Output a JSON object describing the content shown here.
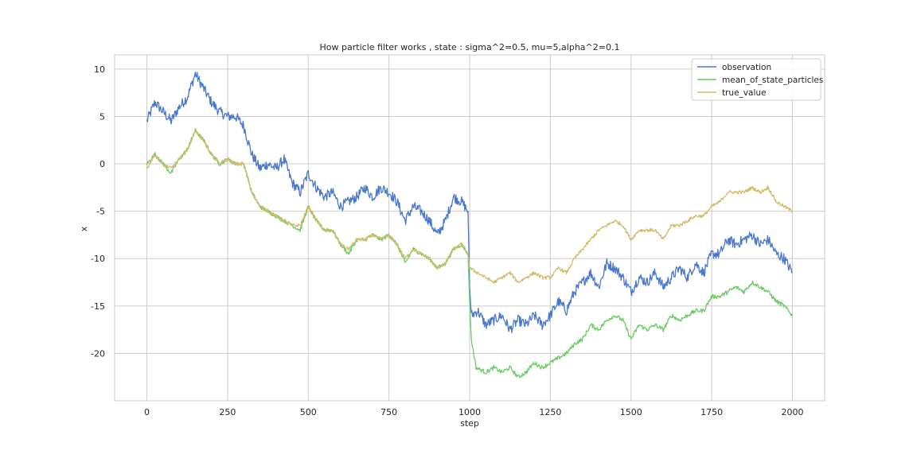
{
  "chart_data": {
    "type": "line",
    "title": "How particle filter works , state : sigma^2=0.5, mu=5,alpha^2=0.1",
    "xlabel": "step",
    "ylabel": "x",
    "xlim": [
      -100,
      2100
    ],
    "ylim": [
      -25,
      11.5
    ],
    "xticks": [
      0,
      250,
      500,
      750,
      1000,
      1250,
      1500,
      1750,
      2000
    ],
    "yticks": [
      10,
      5,
      0,
      -5,
      -10,
      -15,
      -20
    ],
    "grid": true,
    "legend_position": "top-right",
    "series": [
      {
        "name": "observation",
        "color": "#4878d0",
        "points": [
          [
            0,
            4.5
          ],
          [
            25,
            6.5
          ],
          [
            50,
            5.5
          ],
          [
            75,
            4.5
          ],
          [
            100,
            6.0
          ],
          [
            125,
            7.0
          ],
          [
            150,
            9.5
          ],
          [
            175,
            8.0
          ],
          [
            200,
            6.5
          ],
          [
            225,
            5.5
          ],
          [
            250,
            5.0
          ],
          [
            275,
            5.0
          ],
          [
            300,
            4.0
          ],
          [
            325,
            1.0
          ],
          [
            350,
            -0.5
          ],
          [
            375,
            0.0
          ],
          [
            400,
            -0.5
          ],
          [
            425,
            0.5
          ],
          [
            450,
            -2.0
          ],
          [
            475,
            -3.0
          ],
          [
            500,
            -1.0
          ],
          [
            525,
            -2.5
          ],
          [
            550,
            -3.5
          ],
          [
            575,
            -3.0
          ],
          [
            600,
            -4.5
          ],
          [
            625,
            -4.0
          ],
          [
            650,
            -3.5
          ],
          [
            675,
            -2.5
          ],
          [
            700,
            -3.5
          ],
          [
            725,
            -2.5
          ],
          [
            750,
            -3.0
          ],
          [
            775,
            -4.0
          ],
          [
            800,
            -6.0
          ],
          [
            825,
            -4.5
          ],
          [
            850,
            -5.0
          ],
          [
            875,
            -6.0
          ],
          [
            900,
            -7.5
          ],
          [
            925,
            -6.0
          ],
          [
            950,
            -3.5
          ],
          [
            975,
            -4.0
          ],
          [
            995,
            -5.0
          ],
          [
            1000,
            -13.0
          ],
          [
            1005,
            -16.0
          ],
          [
            1025,
            -15.5
          ],
          [
            1050,
            -17.0
          ],
          [
            1075,
            -16.5
          ],
          [
            1100,
            -16.0
          ],
          [
            1125,
            -17.5
          ],
          [
            1150,
            -16.5
          ],
          [
            1175,
            -17.0
          ],
          [
            1200,
            -16.0
          ],
          [
            1225,
            -17.0
          ],
          [
            1250,
            -16.0
          ],
          [
            1275,
            -14.5
          ],
          [
            1300,
            -15.5
          ],
          [
            1325,
            -13.5
          ],
          [
            1350,
            -12.5
          ],
          [
            1375,
            -11.5
          ],
          [
            1400,
            -13.0
          ],
          [
            1425,
            -10.5
          ],
          [
            1450,
            -11.0
          ],
          [
            1475,
            -12.0
          ],
          [
            1500,
            -13.5
          ],
          [
            1525,
            -12.0
          ],
          [
            1550,
            -12.5
          ],
          [
            1575,
            -11.5
          ],
          [
            1600,
            -13.0
          ],
          [
            1625,
            -12.0
          ],
          [
            1650,
            -11.0
          ],
          [
            1675,
            -12.0
          ],
          [
            1700,
            -10.5
          ],
          [
            1725,
            -11.5
          ],
          [
            1750,
            -9.5
          ],
          [
            1775,
            -9.5
          ],
          [
            1800,
            -8.0
          ],
          [
            1825,
            -8.5
          ],
          [
            1850,
            -8.0
          ],
          [
            1875,
            -7.5
          ],
          [
            1900,
            -8.5
          ],
          [
            1925,
            -8.0
          ],
          [
            1950,
            -9.5
          ],
          [
            1975,
            -10.0
          ],
          [
            2000,
            -11.5
          ]
        ]
      },
      {
        "name": "mean_of_state_particles",
        "color": "#6acc64",
        "points": [
          [
            0,
            0.0
          ],
          [
            25,
            1.0
          ],
          [
            50,
            0.0
          ],
          [
            75,
            -1.0
          ],
          [
            100,
            0.5
          ],
          [
            125,
            1.5
          ],
          [
            150,
            3.5
          ],
          [
            175,
            2.5
          ],
          [
            200,
            1.0
          ],
          [
            225,
            0.0
          ],
          [
            250,
            0.5
          ],
          [
            275,
            0.0
          ],
          [
            300,
            0.0
          ],
          [
            325,
            -3.0
          ],
          [
            350,
            -4.5
          ],
          [
            375,
            -5.0
          ],
          [
            400,
            -5.5
          ],
          [
            425,
            -6.0
          ],
          [
            450,
            -6.5
          ],
          [
            475,
            -7.0
          ],
          [
            500,
            -4.5
          ],
          [
            525,
            -6.0
          ],
          [
            550,
            -7.0
          ],
          [
            575,
            -7.0
          ],
          [
            600,
            -8.5
          ],
          [
            625,
            -9.5
          ],
          [
            650,
            -8.0
          ],
          [
            675,
            -8.0
          ],
          [
            700,
            -7.5
          ],
          [
            725,
            -8.0
          ],
          [
            750,
            -7.5
          ],
          [
            775,
            -8.5
          ],
          [
            800,
            -10.5
          ],
          [
            825,
            -9.0
          ],
          [
            850,
            -9.5
          ],
          [
            875,
            -10.0
          ],
          [
            900,
            -11.0
          ],
          [
            925,
            -10.5
          ],
          [
            950,
            -9.0
          ],
          [
            975,
            -8.5
          ],
          [
            995,
            -9.5
          ],
          [
            1000,
            -14.5
          ],
          [
            1005,
            -18.5
          ],
          [
            1020,
            -21.5
          ],
          [
            1050,
            -22.0
          ],
          [
            1075,
            -21.5
          ],
          [
            1100,
            -22.0
          ],
          [
            1125,
            -21.5
          ],
          [
            1150,
            -22.5
          ],
          [
            1175,
            -22.0
          ],
          [
            1200,
            -21.0
          ],
          [
            1225,
            -21.5
          ],
          [
            1250,
            -21.0
          ],
          [
            1275,
            -20.5
          ],
          [
            1300,
            -20.0
          ],
          [
            1325,
            -19.0
          ],
          [
            1350,
            -18.5
          ],
          [
            1375,
            -17.0
          ],
          [
            1400,
            -17.5
          ],
          [
            1425,
            -16.5
          ],
          [
            1450,
            -16.0
          ],
          [
            1475,
            -16.5
          ],
          [
            1500,
            -18.5
          ],
          [
            1525,
            -17.0
          ],
          [
            1550,
            -17.5
          ],
          [
            1575,
            -17.0
          ],
          [
            1600,
            -17.5
          ],
          [
            1625,
            -16.0
          ],
          [
            1650,
            -16.5
          ],
          [
            1675,
            -16.0
          ],
          [
            1700,
            -15.5
          ],
          [
            1725,
            -15.5
          ],
          [
            1750,
            -14.0
          ],
          [
            1775,
            -14.0
          ],
          [
            1800,
            -13.5
          ],
          [
            1825,
            -13.0
          ],
          [
            1850,
            -13.5
          ],
          [
            1875,
            -12.5
          ],
          [
            1900,
            -13.0
          ],
          [
            1925,
            -13.5
          ],
          [
            1950,
            -14.5
          ],
          [
            1975,
            -15.0
          ],
          [
            2000,
            -16.0
          ]
        ]
      },
      {
        "name": "true_value",
        "color": "#d5bb67",
        "points": [
          [
            0,
            -0.5
          ],
          [
            25,
            1.0
          ],
          [
            50,
            0.0
          ],
          [
            75,
            -0.5
          ],
          [
            100,
            0.5
          ],
          [
            125,
            1.5
          ],
          [
            150,
            3.5
          ],
          [
            175,
            2.5
          ],
          [
            200,
            1.0
          ],
          [
            225,
            0.0
          ],
          [
            250,
            0.5
          ],
          [
            275,
            0.0
          ],
          [
            300,
            0.0
          ],
          [
            325,
            -3.0
          ],
          [
            350,
            -4.5
          ],
          [
            375,
            -5.0
          ],
          [
            400,
            -5.5
          ],
          [
            425,
            -6.0
          ],
          [
            450,
            -6.5
          ],
          [
            475,
            -6.5
          ],
          [
            500,
            -4.5
          ],
          [
            525,
            -6.0
          ],
          [
            550,
            -7.0
          ],
          [
            575,
            -7.0
          ],
          [
            600,
            -8.5
          ],
          [
            625,
            -9.0
          ],
          [
            650,
            -8.0
          ],
          [
            675,
            -8.0
          ],
          [
            700,
            -7.5
          ],
          [
            725,
            -8.0
          ],
          [
            750,
            -7.5
          ],
          [
            775,
            -8.5
          ],
          [
            800,
            -10.0
          ],
          [
            825,
            -9.0
          ],
          [
            850,
            -9.5
          ],
          [
            875,
            -10.0
          ],
          [
            900,
            -11.0
          ],
          [
            925,
            -10.5
          ],
          [
            950,
            -9.0
          ],
          [
            975,
            -8.5
          ],
          [
            995,
            -9.5
          ],
          [
            1000,
            -11.0
          ],
          [
            1025,
            -11.5
          ],
          [
            1050,
            -12.0
          ],
          [
            1075,
            -12.5
          ],
          [
            1100,
            -12.0
          ],
          [
            1125,
            -11.5
          ],
          [
            1150,
            -12.5
          ],
          [
            1175,
            -12.0
          ],
          [
            1200,
            -11.5
          ],
          [
            1225,
            -12.0
          ],
          [
            1250,
            -12.0
          ],
          [
            1275,
            -11.0
          ],
          [
            1300,
            -11.5
          ],
          [
            1325,
            -10.0
          ],
          [
            1350,
            -9.0
          ],
          [
            1375,
            -8.0
          ],
          [
            1400,
            -7.0
          ],
          [
            1425,
            -6.5
          ],
          [
            1450,
            -6.0
          ],
          [
            1475,
            -6.5
          ],
          [
            1500,
            -8.0
          ],
          [
            1525,
            -7.0
          ],
          [
            1550,
            -7.0
          ],
          [
            1575,
            -7.0
          ],
          [
            1600,
            -8.0
          ],
          [
            1625,
            -6.5
          ],
          [
            1650,
            -6.5
          ],
          [
            1675,
            -6.0
          ],
          [
            1700,
            -5.5
          ],
          [
            1725,
            -5.5
          ],
          [
            1750,
            -4.5
          ],
          [
            1775,
            -4.0
          ],
          [
            1800,
            -3.0
          ],
          [
            1825,
            -3.0
          ],
          [
            1850,
            -3.0
          ],
          [
            1875,
            -2.5
          ],
          [
            1900,
            -3.0
          ],
          [
            1925,
            -2.5
          ],
          [
            1950,
            -4.0
          ],
          [
            1975,
            -4.5
          ],
          [
            2000,
            -5.0
          ]
        ]
      }
    ]
  }
}
